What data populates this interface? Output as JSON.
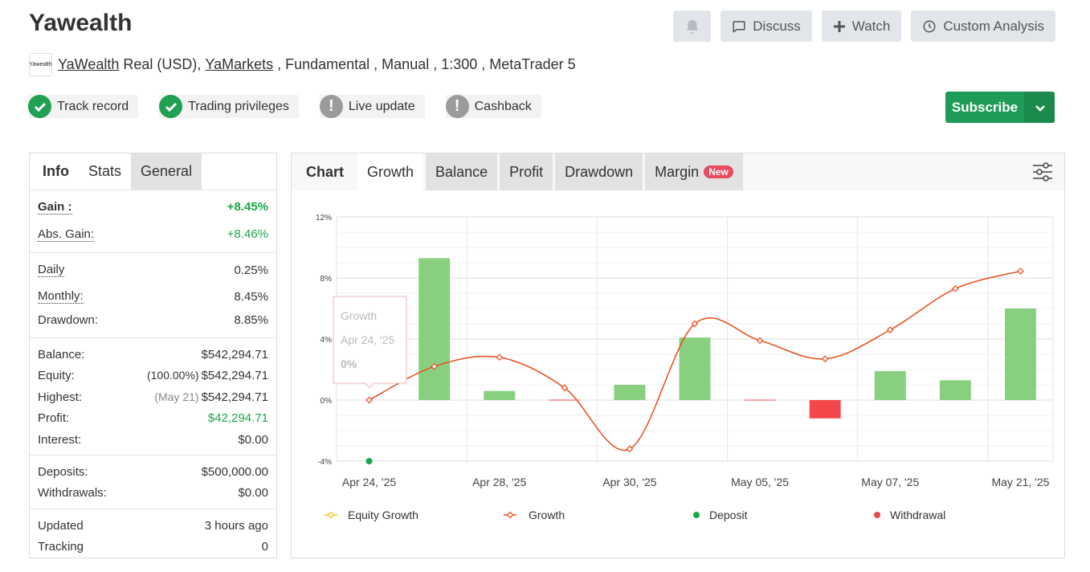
{
  "header": {
    "title": "Yawealth",
    "actions": {
      "discuss": "Discuss",
      "watch": "Watch",
      "custom_analysis": "Custom Analysis"
    }
  },
  "meta": {
    "logo_text": "Yawealth",
    "owner_link": "YaWealth",
    "account": " Real (USD), ",
    "broker_link": "YaMarkets",
    "details": " , Fundamental , Manual , 1:300 , MetaTrader 5"
  },
  "badges": [
    {
      "label": "Track record",
      "status": "verified"
    },
    {
      "label": "Trading privileges",
      "status": "verified"
    },
    {
      "label": "Live update",
      "status": "warning"
    },
    {
      "label": "Cashback",
      "status": "warning"
    }
  ],
  "subscribe": {
    "label": "Subscribe"
  },
  "stats_panel": {
    "tabs": [
      "Info",
      "Stats",
      "General"
    ],
    "gain": {
      "label": "Gain :",
      "value": "+8.45%"
    },
    "abs_gain": {
      "label": "Abs. Gain:",
      "value": "+8.46%"
    },
    "daily": {
      "label": "Daily",
      "value": "0.25%"
    },
    "monthly": {
      "label": "Monthly:",
      "value": "8.45%"
    },
    "drawdown": {
      "label": "Drawdown:",
      "value": "8.85%"
    },
    "balance": {
      "label": "Balance:",
      "value": "$542,294.71"
    },
    "equity": {
      "label": "Equity:",
      "note": "(100.00%)",
      "value": "$542,294.71"
    },
    "highest": {
      "label": "Highest:",
      "note": "(May 21)",
      "value": "$542,294.71"
    },
    "profit": {
      "label": "Profit:",
      "value": "$42,294.71"
    },
    "interest": {
      "label": "Interest:",
      "value": "$0.00"
    },
    "deposits": {
      "label": "Deposits:",
      "value": "$500,000.00"
    },
    "withdrawals": {
      "label": "Withdrawals:",
      "value": "$0.00"
    },
    "updated": {
      "label": "Updated",
      "value": "3 hours ago"
    },
    "tracking": {
      "label": "Tracking",
      "value": "0"
    }
  },
  "chart_panel": {
    "tabs": [
      "Chart",
      "Growth",
      "Balance",
      "Profit",
      "Drawdown",
      "Margin"
    ],
    "new_badge": "New",
    "tooltip": {
      "title": "Growth",
      "date": "Apr 24, '25",
      "value": "0%"
    }
  },
  "colors": {
    "bar_positive": "#88d080",
    "bar_negative": "#f5474b",
    "growth_line": "#e84d1c",
    "deposit": "#1aa64a",
    "withdrawal": "#e84a4a",
    "equity": "#f1c21b"
  },
  "chart_data": {
    "type": "bar",
    "x_tick_labels": [
      "Apr 24, '25",
      "Apr 28, '25",
      "Apr 30, '25",
      "May 05, '25",
      "May 07, '25",
      "May 21, '25"
    ],
    "ylim": [
      -4,
      12
    ],
    "y_ticks": [
      -4,
      0,
      4,
      8,
      12
    ],
    "y_tick_labels": [
      "-4%",
      "0%",
      "4%",
      "8%",
      "12%"
    ],
    "grid": true,
    "legend_position": "bottom",
    "legend": [
      "Equity Growth",
      "Growth",
      "Deposit",
      "Withdrawal"
    ],
    "bars": [
      9.3,
      0.6,
      0.0,
      1.0,
      4.1,
      0.0,
      -1.2,
      1.9,
      1.3,
      6.0
    ],
    "growth": [
      0,
      2.2,
      2.8,
      0.8,
      -3.2,
      5.0,
      3.9,
      2.7,
      4.6,
      7.3,
      8.45
    ],
    "deposit": {
      "x_index": 0,
      "y": -4
    }
  }
}
